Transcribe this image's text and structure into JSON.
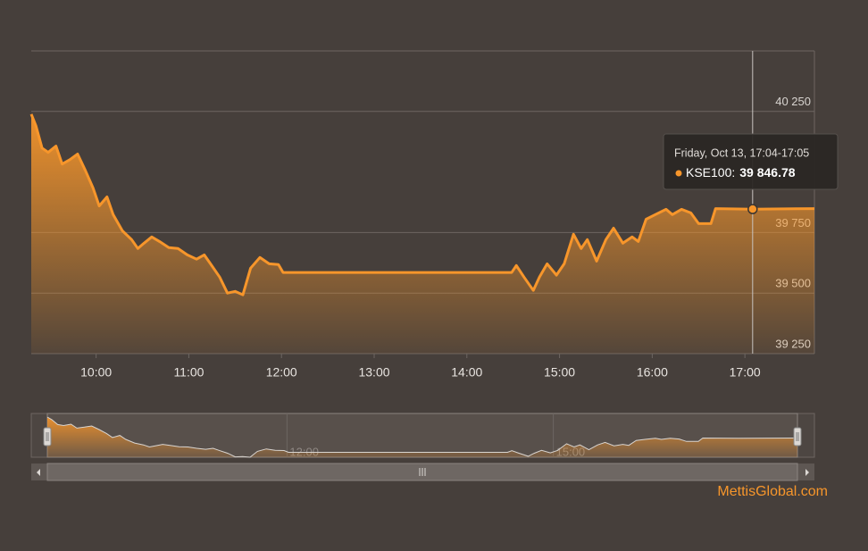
{
  "chart_data": {
    "type": "line",
    "x": [
      "09:18",
      "09:21",
      "09:25",
      "09:29",
      "09:34",
      "09:38",
      "09:43",
      "09:48",
      "09:53",
      "09:58",
      "10:02",
      "10:07",
      "10:11",
      "10:17",
      "10:23",
      "10:27",
      "10:31",
      "10:36",
      "10:41",
      "10:47",
      "10:53",
      "10:59",
      "11:05",
      "11:10",
      "11:14",
      "11:20",
      "11:25",
      "11:30",
      "11:35",
      "11:40",
      "11:46",
      "11:52",
      "11:58",
      "12:01",
      "14:29",
      "14:32",
      "14:37",
      "14:43",
      "14:47",
      "14:52",
      "14:58",
      "15:03",
      "15:09",
      "15:14",
      "15:18",
      "15:24",
      "15:30",
      "15:35",
      "15:41",
      "15:47",
      "15:51",
      "15:56",
      "16:02",
      "16:09",
      "16:13",
      "16:19",
      "16:25",
      "16:30",
      "16:38",
      "16:41",
      "17:05",
      "17:45"
    ],
    "series": [
      {
        "name": "KSE100",
        "color": "#f7962b",
        "values": [
          40239,
          40191,
          40099,
          40081,
          40107,
          40033,
          40051,
          40074,
          40007,
          39934,
          39860,
          39897,
          39824,
          39757,
          39721,
          39684,
          39706,
          39732,
          39713,
          39688,
          39684,
          39658,
          39640,
          39658,
          39621,
          39566,
          39500,
          39507,
          39493,
          39603,
          39647,
          39621,
          39618,
          39585,
          39585,
          39614,
          39566,
          39511,
          39566,
          39621,
          39574,
          39621,
          39743,
          39684,
          39721,
          39632,
          39721,
          39768,
          39706,
          39732,
          39713,
          39805,
          39824,
          39846,
          39824,
          39846,
          39831,
          39787,
          39787,
          39849,
          39846.78,
          39849
        ]
      }
    ],
    "xlim": [
      "09:18",
      "17:45"
    ],
    "xticks": [
      "10:00",
      "11:00",
      "12:00",
      "13:00",
      "14:00",
      "15:00",
      "16:00",
      "17:00"
    ],
    "ylim": [
      39250,
      40500
    ],
    "yticks": [
      {
        "value": 39250,
        "label": "39 250"
      },
      {
        "value": 39500,
        "label": "39 500"
      },
      {
        "value": 39750,
        "label": "39 750"
      },
      {
        "value": 40250,
        "label": "40 250"
      }
    ],
    "grid": true,
    "tooltip": {
      "title": "Friday, Oct 13, 17:04-17:05",
      "name": "KSE100:",
      "value_label": "39 846.78",
      "point": 60
    },
    "navigator_ticks": [
      "12:00",
      "15:00"
    ],
    "watermark": "MettisGlobal.com"
  }
}
